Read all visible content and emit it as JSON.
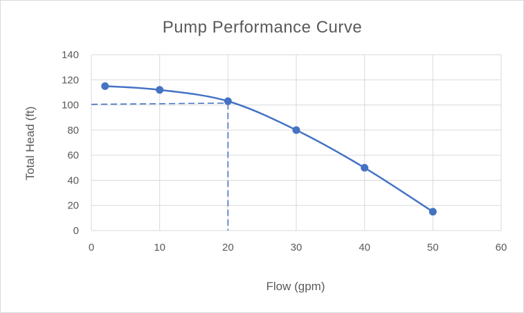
{
  "chart_data": {
    "type": "scatter",
    "title": "Pump Performance Curve",
    "xlabel": "Flow (gpm)",
    "ylabel": "Total Head (ft)",
    "xlim": [
      0,
      60
    ],
    "ylim": [
      0,
      140
    ],
    "x_ticks": [
      "0",
      "10",
      "20",
      "30",
      "40",
      "50",
      "60"
    ],
    "y_ticks": [
      "0",
      "20",
      "40",
      "60",
      "80",
      "100",
      "120",
      "140"
    ],
    "grid": true,
    "legend": "none",
    "smooth": true,
    "series": [
      {
        "color": "#4472c4",
        "x": [
          2,
          10,
          20,
          30,
          40,
          50
        ],
        "y": [
          115,
          112,
          103,
          80,
          50,
          15
        ]
      }
    ],
    "reference_lines": [
      {
        "style": "dashed",
        "color": "#4472c4",
        "points": [
          [
            0,
            100.5
          ],
          [
            20,
            101.5
          ]
        ]
      },
      {
        "style": "dashed",
        "color": "#4472c4",
        "points": [
          [
            20,
            101.5
          ],
          [
            20,
            0
          ]
        ]
      }
    ]
  }
}
